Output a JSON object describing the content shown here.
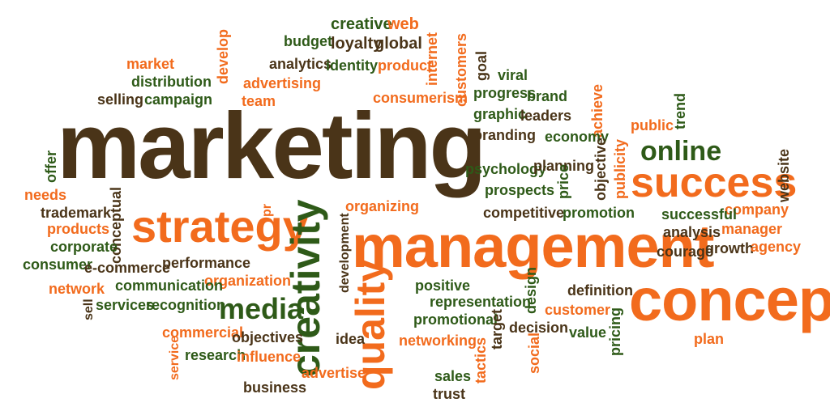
{
  "palette": {
    "orange": "#f26b1d",
    "brown": "#4a3418",
    "green": "#2e5a18",
    "background": "#ffffff"
  },
  "words": [
    {
      "text": "marketing",
      "color": "brown"
    },
    {
      "text": "management",
      "color": "orange"
    },
    {
      "text": "concept",
      "color": "orange"
    },
    {
      "text": "success",
      "color": "orange"
    },
    {
      "text": "strategy",
      "color": "orange"
    },
    {
      "text": "creativity",
      "color": "green"
    },
    {
      "text": "quality",
      "color": "orange"
    },
    {
      "text": "online",
      "color": "green"
    },
    {
      "text": "media",
      "color": "green"
    },
    {
      "text": "creative",
      "color": "green"
    },
    {
      "text": "web",
      "color": "orange"
    },
    {
      "text": "budget",
      "color": "green"
    },
    {
      "text": "loyalty",
      "color": "brown"
    },
    {
      "text": "global",
      "color": "brown"
    },
    {
      "text": "internet",
      "color": "orange"
    },
    {
      "text": "customers",
      "color": "orange"
    },
    {
      "text": "goal",
      "color": "brown"
    },
    {
      "text": "develop",
      "color": "orange"
    },
    {
      "text": "market",
      "color": "orange"
    },
    {
      "text": "analytics",
      "color": "brown"
    },
    {
      "text": "identity",
      "color": "green"
    },
    {
      "text": "product",
      "color": "orange"
    },
    {
      "text": "viral",
      "color": "green"
    },
    {
      "text": "distribution",
      "color": "green"
    },
    {
      "text": "advertising",
      "color": "orange"
    },
    {
      "text": "progress",
      "color": "green"
    },
    {
      "text": "brand",
      "color": "green"
    },
    {
      "text": "selling",
      "color": "brown"
    },
    {
      "text": "campaign",
      "color": "green"
    },
    {
      "text": "team",
      "color": "orange"
    },
    {
      "text": "consumerism",
      "color": "orange"
    },
    {
      "text": "achieve",
      "color": "orange"
    },
    {
      "text": "trend",
      "color": "green"
    },
    {
      "text": "graphic",
      "color": "green"
    },
    {
      "text": "leaders",
      "color": "brown"
    },
    {
      "text": "public",
      "color": "orange"
    },
    {
      "text": "branding",
      "color": "brown"
    },
    {
      "text": "economy",
      "color": "green"
    },
    {
      "text": "publicity",
      "color": "orange"
    },
    {
      "text": "offer",
      "color": "green"
    },
    {
      "text": "objective",
      "color": "brown"
    },
    {
      "text": "psychology",
      "color": "green"
    },
    {
      "text": "planning",
      "color": "brown"
    },
    {
      "text": "website",
      "color": "brown"
    },
    {
      "text": "needs",
      "color": "orange"
    },
    {
      "text": "price",
      "color": "green"
    },
    {
      "text": "prospects",
      "color": "green"
    },
    {
      "text": "conceptual",
      "color": "brown"
    },
    {
      "text": "trademark",
      "color": "brown"
    },
    {
      "text": "pr",
      "color": "orange"
    },
    {
      "text": "organizing",
      "color": "orange"
    },
    {
      "text": "company",
      "color": "orange"
    },
    {
      "text": "competitive",
      "color": "brown"
    },
    {
      "text": "promotion",
      "color": "green"
    },
    {
      "text": "successful",
      "color": "green"
    },
    {
      "text": "products",
      "color": "orange"
    },
    {
      "text": "manager",
      "color": "orange"
    },
    {
      "text": "analysis",
      "color": "brown"
    },
    {
      "text": "corporate",
      "color": "green"
    },
    {
      "text": "development",
      "color": "brown"
    },
    {
      "text": "growth",
      "color": "brown"
    },
    {
      "text": "agency",
      "color": "orange"
    },
    {
      "text": "courage",
      "color": "brown"
    },
    {
      "text": "consumer",
      "color": "green"
    },
    {
      "text": "e-commerce",
      "color": "brown"
    },
    {
      "text": "performance",
      "color": "brown"
    },
    {
      "text": "organization",
      "color": "orange"
    },
    {
      "text": "positive",
      "color": "green"
    },
    {
      "text": "design",
      "color": "green"
    },
    {
      "text": "definition",
      "color": "brown"
    },
    {
      "text": "network",
      "color": "orange"
    },
    {
      "text": "communication",
      "color": "green"
    },
    {
      "text": "representation",
      "color": "green"
    },
    {
      "text": "customer",
      "color": "orange"
    },
    {
      "text": "sell",
      "color": "brown"
    },
    {
      "text": "services",
      "color": "green"
    },
    {
      "text": "recognition",
      "color": "green"
    },
    {
      "text": "promotional",
      "color": "green"
    },
    {
      "text": "pricing",
      "color": "green"
    },
    {
      "text": "target",
      "color": "brown"
    },
    {
      "text": "decision",
      "color": "brown"
    },
    {
      "text": "value",
      "color": "green"
    },
    {
      "text": "commercial",
      "color": "orange"
    },
    {
      "text": "objectives",
      "color": "brown"
    },
    {
      "text": "plan",
      "color": "orange"
    },
    {
      "text": "service",
      "color": "orange"
    },
    {
      "text": "research",
      "color": "green"
    },
    {
      "text": "influence",
      "color": "orange"
    },
    {
      "text": "idea",
      "color": "brown"
    },
    {
      "text": "networking",
      "color": "orange"
    },
    {
      "text": "tactics",
      "color": "orange"
    },
    {
      "text": "social",
      "color": "orange"
    },
    {
      "text": "advertise",
      "color": "orange"
    },
    {
      "text": "sales",
      "color": "green"
    },
    {
      "text": "business",
      "color": "brown"
    },
    {
      "text": "trust",
      "color": "brown"
    }
  ]
}
